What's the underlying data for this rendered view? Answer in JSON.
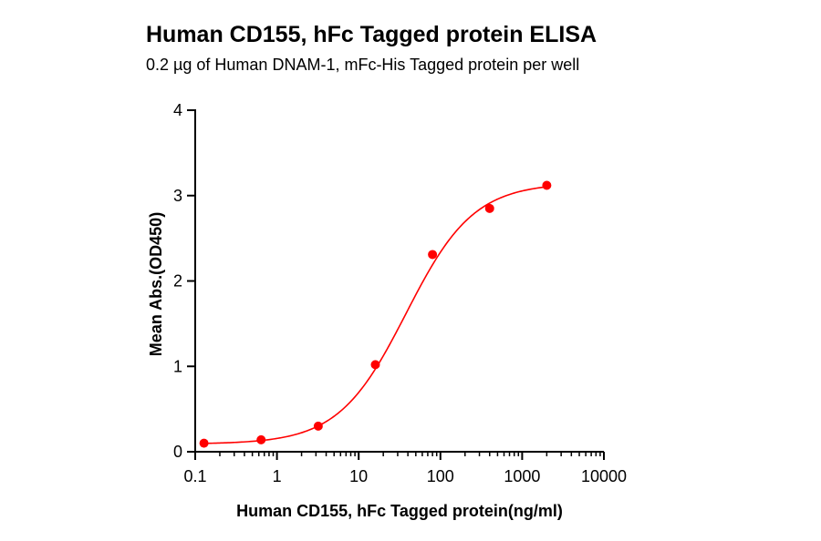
{
  "chart_data": {
    "type": "scatter",
    "title": "Human CD155, hFc Tagged protein ELISA",
    "subtitle": "0.2 µg of Human DNAM-1, mFc-His Tagged protein per well",
    "xlabel": "Human CD155, hFc Tagged protein(ng/ml)",
    "ylabel": "Mean Abs.(OD450)",
    "x_scale": "log",
    "xlim": [
      0.1,
      10000
    ],
    "ylim": [
      0,
      4
    ],
    "x_ticks": [
      0.1,
      1,
      10,
      100,
      1000,
      10000
    ],
    "x_tick_labels": [
      "0.1",
      "1",
      "10",
      "100",
      "1000",
      "10000"
    ],
    "y_ticks": [
      0,
      1,
      2,
      3,
      4
    ],
    "y_tick_labels": [
      "0",
      "1",
      "2",
      "3",
      "4"
    ],
    "grid": false,
    "series": [
      {
        "color": "#ff0000",
        "x": [
          0.128,
          0.64,
          3.2,
          16,
          80,
          400,
          2000
        ],
        "y": [
          0.1,
          0.14,
          0.3,
          1.02,
          2.31,
          2.85,
          3.12
        ],
        "fit_curve": "four-parameter logistic"
      }
    ]
  }
}
